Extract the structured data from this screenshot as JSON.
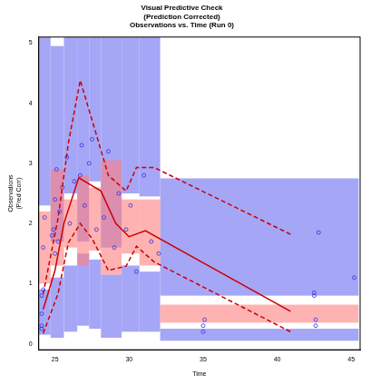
{
  "chart_data": {
    "type": "scatter",
    "title": [
      "Visual Predictive Check",
      "(Prediction Corrected)",
      "Observations vs. Time (Run 0)"
    ],
    "x_label": "Time",
    "y_label": [
      "Observations",
      "(Pred Corr)"
    ],
    "xlim": [
      23.9,
      45.6
    ],
    "xticks": [
      25,
      30,
      35,
      40,
      45
    ],
    "ylim": [
      -0.1,
      5.1
    ],
    "yticks": [
      0,
      1,
      2,
      3,
      4,
      5
    ],
    "grid": false,
    "bands": [
      {
        "color": "#a6a6f6",
        "bins": [
          {
            "x": [
              23.9,
              24.7
            ],
            "y": [
              0.15,
              0.9
            ]
          },
          {
            "x": [
              24.7,
              25.6
            ],
            "y": [
              0.1,
              1.1
            ]
          },
          {
            "x": [
              25.6,
              26.5
            ],
            "y": [
              0.2,
              1.3
            ]
          },
          {
            "x": [
              26.5,
              27.3
            ],
            "y": [
              0.3,
              1.5
            ]
          },
          {
            "x": [
              27.3,
              28.1
            ],
            "y": [
              0.25,
              1.4
            ]
          },
          {
            "x": [
              28.1,
              29.5
            ],
            "y": [
              0.1,
              1.15
            ]
          },
          {
            "x": [
              29.5,
              30.7
            ],
            "y": [
              0.2,
              1.3
            ]
          },
          {
            "x": [
              30.7,
              32.1
            ],
            "y": [
              0.2,
              1.2
            ]
          },
          {
            "x": [
              32.1,
              45.5
            ],
            "y": [
              0.05,
              0.25
            ]
          }
        ]
      },
      {
        "color": "#a6a6f6",
        "bins": [
          {
            "x": [
              23.9,
              24.7
            ],
            "y": [
              2.3,
              5.1
            ]
          },
          {
            "x": [
              24.7,
              25.6
            ],
            "y": [
              1.7,
              4.95
            ]
          },
          {
            "x": [
              25.6,
              26.5
            ],
            "y": [
              2.5,
              5.1
            ]
          },
          {
            "x": [
              26.5,
              27.3
            ],
            "y": [
              1.7,
              5.1
            ]
          },
          {
            "x": [
              27.3,
              28.1
            ],
            "y": [
              2.7,
              5.1
            ]
          },
          {
            "x": [
              28.1,
              29.5
            ],
            "y": [
              1.6,
              5.1
            ]
          },
          {
            "x": [
              29.5,
              30.7
            ],
            "y": [
              2.5,
              5.1
            ]
          },
          {
            "x": [
              30.7,
              32.1
            ],
            "y": [
              2.45,
              5.1
            ]
          },
          {
            "x": [
              32.1,
              45.5
            ],
            "y": [
              0.8,
              2.75
            ]
          }
        ]
      },
      {
        "color": "#ff7f7f",
        "bins": [
          {
            "x": [
              23.9,
              24.7
            ],
            "y": [
              1.0,
              2.2
            ]
          },
          {
            "x": [
              24.7,
              25.6
            ],
            "y": [
              1.3,
              2.9
            ]
          },
          {
            "x": [
              25.6,
              26.5
            ],
            "y": [
              1.6,
              2.4
            ]
          },
          {
            "x": [
              26.5,
              27.3
            ],
            "y": [
              1.3,
              2.8
            ]
          },
          {
            "x": [
              27.3,
              28.1
            ],
            "y": [
              1.55,
              2.6
            ]
          },
          {
            "x": [
              28.1,
              29.5
            ],
            "y": [
              1.15,
              3.05
            ]
          },
          {
            "x": [
              29.5,
              30.7
            ],
            "y": [
              1.5,
              2.4
            ]
          },
          {
            "x": [
              30.7,
              32.1
            ],
            "y": [
              1.3,
              2.4
            ]
          },
          {
            "x": [
              32.1,
              45.5
            ],
            "y": [
              0.35,
              0.65
            ]
          }
        ]
      }
    ],
    "series": [
      {
        "type": "scatter",
        "color": "#3030e0",
        "marker": "circle",
        "x": [
          24.1,
          24.1,
          24.1,
          24.2,
          24.1,
          24.2,
          24.3,
          24.8,
          24.9,
          25.0,
          25.0,
          25.1,
          25.2,
          25.3,
          25.5,
          25.8,
          26.0,
          26.3,
          26.7,
          26.8,
          27.0,
          27.3,
          27.5,
          27.8,
          28.3,
          28.6,
          29.0,
          29.3,
          29.8,
          30.1,
          30.5,
          31.0,
          31.5,
          32.0,
          35.0,
          35.0,
          35.1,
          42.5,
          42.5,
          42.6,
          42.6,
          42.8,
          45.2
        ],
        "values": [
          0.3,
          0.5,
          0.8,
          0.9,
          0.25,
          1.6,
          2.1,
          1.8,
          1.9,
          2.4,
          1.5,
          2.9,
          1.7,
          2.2,
          2.6,
          3.1,
          2.0,
          2.7,
          2.8,
          3.3,
          2.3,
          3.0,
          3.4,
          1.9,
          2.1,
          3.2,
          1.6,
          2.5,
          1.9,
          2.3,
          1.2,
          2.8,
          1.7,
          1.5,
          0.3,
          0.2,
          0.4,
          0.85,
          0.8,
          0.4,
          0.3,
          1.85,
          1.1
        ]
      },
      {
        "type": "line",
        "color": "#cc0000",
        "line_style": "solid",
        "x": [
          24.2,
          25.0,
          25.6,
          26.6,
          28.1,
          29.1,
          30.0,
          31.1,
          40.9
        ],
        "values": [
          0.57,
          1.22,
          2.0,
          2.76,
          2.54,
          2.0,
          1.78,
          1.88,
          0.54
        ]
      },
      {
        "type": "line",
        "color": "#cc0000",
        "line_style": "dashed",
        "x": [
          24.2,
          25.2,
          25.9,
          26.7,
          27.5,
          28.6,
          29.8,
          30.5,
          31.7,
          40.9
        ],
        "values": [
          0.83,
          2.08,
          3.33,
          4.38,
          3.72,
          2.8,
          2.54,
          2.93,
          2.93,
          1.82
        ]
      },
      {
        "type": "line",
        "color": "#cc0000",
        "line_style": "dashed",
        "x": [
          24.2,
          25.2,
          25.9,
          26.7,
          27.5,
          28.6,
          29.8,
          30.5,
          31.7,
          40.9
        ],
        "values": [
          0.17,
          0.83,
          1.68,
          2.0,
          1.75,
          1.22,
          1.29,
          1.62,
          1.36,
          0.2
        ]
      }
    ]
  }
}
